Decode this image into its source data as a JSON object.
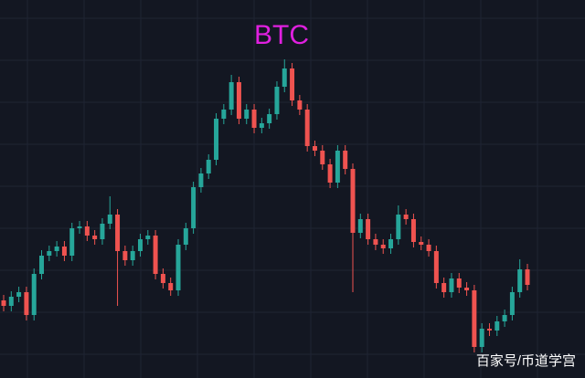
{
  "chart_data": {
    "type": "candlestick",
    "title": "BTC",
    "title_color": "#e020e0",
    "up_color": "#26a69a",
    "down_color": "#ef5350",
    "open": [
      85,
      79,
      89,
      94,
      69,
      114,
      134,
      139,
      144,
      134,
      164,
      166,
      156,
      152,
      169,
      179,
      139,
      129,
      139,
      152,
      156,
      114,
      104,
      96,
      146,
      164,
      209,
      224,
      239,
      284,
      294,
      324,
      284,
      294,
      274,
      279,
      289,
      319,
      339,
      304,
      294,
      254,
      249,
      234,
      214,
      249,
      229,
      159,
      174,
      152,
      146,
      142,
      152,
      179,
      174,
      149,
      146,
      139,
      104,
      94,
      109,
      99,
      96,
      34,
      54,
      52,
      62,
      69,
      94,
      119
    ],
    "high": [
      91,
      95,
      100,
      100,
      120,
      140,
      145,
      150,
      150,
      170,
      172,
      172,
      162,
      175,
      199,
      185,
      145,
      145,
      158,
      162,
      162,
      120,
      110,
      152,
      170,
      215,
      230,
      245,
      290,
      300,
      332,
      330,
      300,
      300,
      285,
      295,
      325,
      349,
      345,
      310,
      300,
      260,
      255,
      240,
      255,
      255,
      235,
      180,
      180,
      158,
      152,
      158,
      189,
      185,
      180,
      155,
      152,
      145,
      110,
      115,
      115,
      105,
      102,
      60,
      60,
      68,
      75,
      100,
      130,
      125
    ],
    "low": [
      73,
      73,
      83,
      63,
      63,
      108,
      128,
      133,
      128,
      128,
      158,
      150,
      146,
      146,
      163,
      79,
      123,
      123,
      133,
      146,
      108,
      98,
      90,
      90,
      140,
      158,
      203,
      218,
      233,
      278,
      288,
      278,
      278,
      268,
      268,
      273,
      283,
      313,
      298,
      288,
      248,
      243,
      228,
      208,
      208,
      223,
      94,
      153,
      146,
      140,
      136,
      136,
      146,
      168,
      143,
      140,
      133,
      98,
      88,
      88,
      93,
      90,
      28,
      28,
      46,
      46,
      56,
      63,
      88,
      96
    ],
    "close": [
      79,
      89,
      94,
      69,
      114,
      134,
      139,
      144,
      134,
      164,
      166,
      156,
      152,
      169,
      179,
      139,
      129,
      139,
      152,
      156,
      114,
      104,
      96,
      146,
      164,
      209,
      224,
      239,
      284,
      294,
      324,
      284,
      294,
      274,
      279,
      289,
      319,
      339,
      304,
      294,
      254,
      249,
      234,
      214,
      249,
      229,
      159,
      174,
      152,
      146,
      142,
      152,
      179,
      174,
      149,
      146,
      139,
      104,
      94,
      109,
      99,
      96,
      34,
      54,
      52,
      62,
      69,
      94,
      119,
      102
    ]
  },
  "watermark": "百家号/币道学宫"
}
